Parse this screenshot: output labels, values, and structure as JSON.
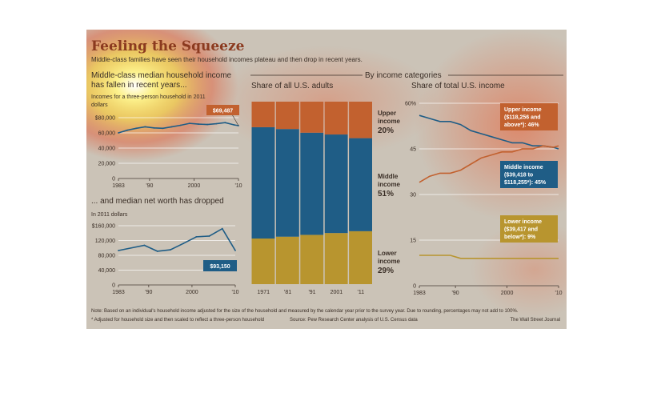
{
  "title": "Feeling the Squeeze",
  "subtitle": "Middle-class families have seen their household incomes plateau and then drop in recent years.",
  "section_heading": "By income categories",
  "note": "Note: Based on an individual's household income adjusted for the size of the household and measured by the calendar year prior to the survey year. Due to rounding, percentages may not add to 100%.",
  "footnote": "* Adjusted for household size and then scaled to reflect a three-person household",
  "source": "Source: Pew Research Center analysis of U.S. Census data",
  "credit": "The Wall Street Journal",
  "colors": {
    "upper": "#c2612f",
    "middle": "#1f5d86",
    "lower": "#b8952f",
    "background": "#cbc3b7"
  },
  "chart_data": [
    {
      "type": "line",
      "title_lines": [
        "Middle-class median household income",
        "has fallen in recent years..."
      ],
      "subtitle_lines": [
        "Incomes for a three-person household in 2011",
        "dollars"
      ],
      "x": [
        1983,
        1985,
        1987,
        1989,
        1991,
        1993,
        1995,
        1997,
        1999,
        2001,
        2003,
        2005,
        2007,
        2009,
        2010
      ],
      "y": [
        60000,
        63500,
        66000,
        68000,
        66500,
        66000,
        68000,
        70000,
        72500,
        71500,
        71000,
        72000,
        73500,
        70500,
        69487
      ],
      "xticks": [
        "1983",
        "'90",
        "2000",
        "'10"
      ],
      "xtick_values": [
        1983,
        1990,
        2000,
        2010
      ],
      "yticks": [
        "$80,000",
        "60,000",
        "40,000",
        "20,000",
        "0"
      ],
      "ytick_values": [
        80000,
        60000,
        40000,
        20000,
        0
      ],
      "ylim": [
        0,
        80000
      ],
      "xlim": [
        1983,
        2010
      ],
      "callout": "$69,487"
    },
    {
      "type": "line",
      "title_lines": [
        "... and median net worth has dropped"
      ],
      "subtitle_lines": [
        "In 2011 dollars"
      ],
      "x": [
        1983,
        1989,
        1992,
        1995,
        1998,
        2001,
        2004,
        2007,
        2010
      ],
      "y": [
        93000,
        107000,
        91000,
        95000,
        112000,
        130000,
        132000,
        152000,
        93150
      ],
      "xticks": [
        "1983",
        "'90",
        "2000",
        "'10"
      ],
      "xtick_values": [
        1983,
        1990,
        2000,
        2010
      ],
      "yticks": [
        "$160,000",
        "120,000",
        "80,000",
        "40,000",
        "0"
      ],
      "ytick_values": [
        160000,
        120000,
        80000,
        40000,
        0
      ],
      "ylim": [
        0,
        160000
      ],
      "xlim": [
        1983,
        2010
      ],
      "callout": "$93,150"
    },
    {
      "type": "bar",
      "title": "Share of all U.S. adults",
      "categories": [
        "1971",
        "'81",
        "'91",
        "2001",
        "'11"
      ],
      "series": [
        {
          "name": "Lower income",
          "values": [
            25,
            26,
            27,
            28,
            29
          ]
        },
        {
          "name": "Middle income",
          "values": [
            61,
            59,
            56,
            54,
            51
          ]
        },
        {
          "name": "Upper income",
          "values": [
            14,
            15,
            17,
            18,
            20
          ]
        }
      ],
      "labels": [
        {
          "name": "Upper income",
          "lines": [
            "Upper",
            "income"
          ],
          "pct": "20%"
        },
        {
          "name": "Middle income",
          "lines": [
            "Middle",
            "income"
          ],
          "pct": "51%"
        },
        {
          "name": "Lower income",
          "lines": [
            "Lower",
            "income"
          ],
          "pct": "29%"
        }
      ],
      "ylim": [
        0,
        100
      ]
    },
    {
      "type": "line",
      "title": "Share of total U.S. income",
      "x": [
        1983,
        1985,
        1987,
        1989,
        1991,
        1993,
        1995,
        1997,
        1999,
        2001,
        2003,
        2005,
        2007,
        2009,
        2010
      ],
      "series": [
        {
          "name": "Middle income",
          "values": [
            56,
            55,
            54,
            54,
            53,
            51,
            50,
            49,
            48,
            47,
            47,
            46,
            46,
            45.5,
            45
          ]
        },
        {
          "name": "Upper income",
          "values": [
            34,
            36,
            37,
            37,
            38,
            40,
            42,
            43,
            44,
            44,
            45,
            45,
            46,
            45.5,
            46
          ]
        },
        {
          "name": "Lower income",
          "values": [
            10,
            10,
            10,
            10,
            9,
            9,
            9,
            9,
            9,
            9,
            9,
            9,
            9,
            9,
            9
          ]
        }
      ],
      "callouts": [
        {
          "name": "Upper income",
          "lines": [
            "Upper income",
            "($118,256 and",
            "above*): 46%"
          ]
        },
        {
          "name": "Middle income",
          "lines": [
            "Middle income",
            "($39,418 to",
            "$118,255*): 45%"
          ]
        },
        {
          "name": "Lower income",
          "lines": [
            "Lower income",
            "($39,417 and",
            "below*): 9%"
          ]
        }
      ],
      "yticks": [
        "60%",
        "45",
        "30",
        "15",
        "0"
      ],
      "ytick_values": [
        60,
        45,
        30,
        15,
        0
      ],
      "xticks": [
        "1983",
        "'90",
        "2000",
        "'10"
      ],
      "xtick_values": [
        1983,
        1990,
        2000,
        2010
      ],
      "ylim": [
        0,
        60
      ],
      "xlim": [
        1983,
        2010
      ]
    }
  ]
}
